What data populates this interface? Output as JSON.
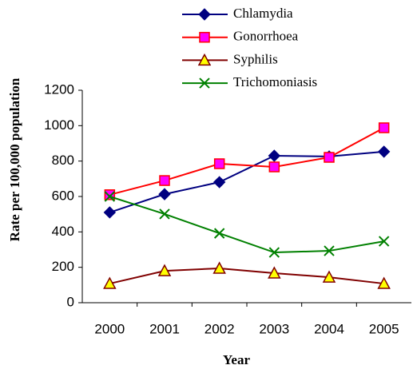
{
  "chart_data": {
    "type": "line",
    "x_label": "Year",
    "y_label": "Rate per 100,000 population",
    "categories": [
      "2000",
      "2001",
      "2002",
      "2003",
      "2004",
      "2005"
    ],
    "series": [
      {
        "name": "Chlamydia",
        "color": "#000080",
        "marker": "diamond",
        "marker_color": "#000080",
        "values": [
          510,
          613,
          681,
          830,
          826,
          853
        ]
      },
      {
        "name": "Gonorrhoea",
        "color": "#ff0000",
        "marker": "square",
        "marker_color": "#ff00ff",
        "values": [
          610,
          690,
          785,
          767,
          821,
          988
        ]
      },
      {
        "name": "Syphilis",
        "color": "#800000",
        "marker": "triangle",
        "marker_color": "#ffff00",
        "values": [
          108,
          180,
          194,
          167,
          144,
          108
        ]
      },
      {
        "name": "Trichomoniasis",
        "color": "#008000",
        "marker": "x",
        "marker_color": "#008000",
        "values": [
          600,
          501,
          392,
          284,
          293,
          347
        ]
      }
    ],
    "ylim": [
      0,
      1200
    ],
    "yticks": [
      0,
      200,
      400,
      600,
      800,
      1000,
      1200
    ],
    "legend": "top"
  }
}
